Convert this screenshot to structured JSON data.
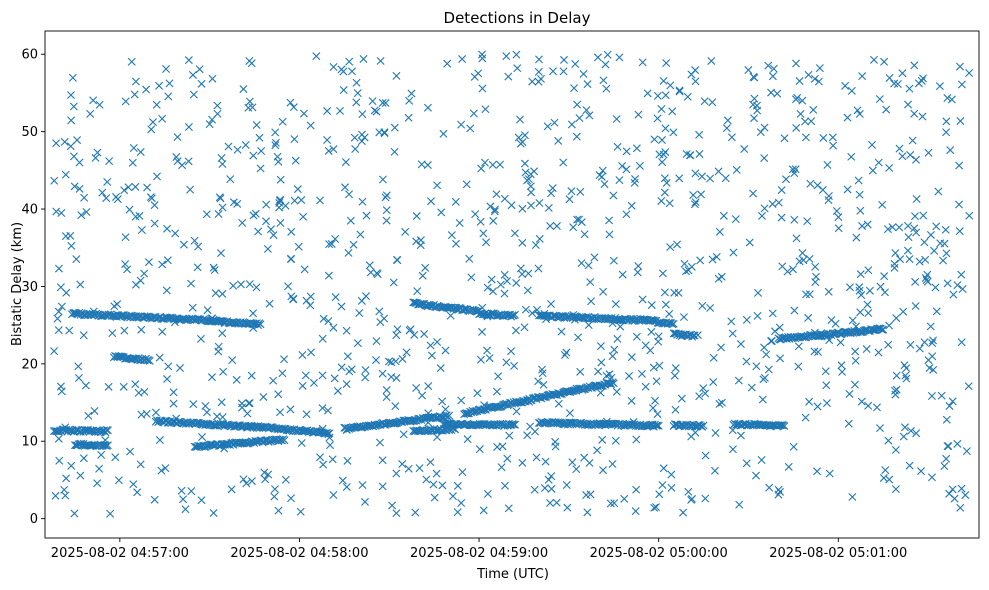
{
  "chart_data": {
    "type": "scatter",
    "title": "Detections in Delay",
    "xlabel": "Time (UTC)",
    "ylabel": "Bistatic Delay (km)",
    "marker": "x",
    "color": "#1f77b4",
    "grid": false,
    "legend": "none",
    "x_axis": {
      "kind": "time",
      "range": [
        "2025-08-02 04:56:35",
        "2025-08-02 05:01:47"
      ],
      "ticks": [
        {
          "t": "2025-08-02 04:57:00",
          "label": "2025-08-02 04:57:00"
        },
        {
          "t": "2025-08-02 04:58:00",
          "label": "2025-08-02 04:58:00"
        },
        {
          "t": "2025-08-02 04:59:00",
          "label": "2025-08-02 04:59:00"
        },
        {
          "t": "2025-08-02 05:00:00",
          "label": "2025-08-02 05:00:00"
        },
        {
          "t": "2025-08-02 05:01:00",
          "label": "2025-08-02 05:01:00"
        }
      ]
    },
    "y_axis": {
      "range": [
        -2.5,
        63
      ],
      "ticks": [
        0,
        10,
        20,
        30,
        40,
        50,
        60
      ],
      "tick_labels": [
        "0",
        "10",
        "20",
        "30",
        "40",
        "50",
        "60"
      ]
    },
    "tracks": [
      {
        "start": "2025-08-02 04:56:44",
        "end": "2025-08-02 04:57:20",
        "y_start": 26.5,
        "y_end": 25.8
      },
      {
        "start": "2025-08-02 04:57:20",
        "end": "2025-08-02 04:57:35",
        "y_start": 25.8,
        "y_end": 25.5
      },
      {
        "start": "2025-08-02 04:57:35",
        "end": "2025-08-02 04:57:47",
        "y_start": 25.4,
        "y_end": 25.1
      },
      {
        "start": "2025-08-02 04:56:58",
        "end": "2025-08-02 04:57:10",
        "y_start": 20.9,
        "y_end": 20.5
      },
      {
        "start": "2025-08-02 04:56:38",
        "end": "2025-08-02 04:56:56",
        "y_start": 11.4,
        "y_end": 11.3
      },
      {
        "start": "2025-08-02 04:56:45",
        "end": "2025-08-02 04:56:56",
        "y_start": 9.6,
        "y_end": 9.4
      },
      {
        "start": "2025-08-02 04:57:12",
        "end": "2025-08-02 04:57:55",
        "y_start": 12.6,
        "y_end": 11.6
      },
      {
        "start": "2025-08-02 04:57:25",
        "end": "2025-08-02 04:57:55",
        "y_start": 9.3,
        "y_end": 10.2
      },
      {
        "start": "2025-08-02 04:57:55",
        "end": "2025-08-02 04:58:10",
        "y_start": 11.5,
        "y_end": 11.1
      },
      {
        "start": "2025-08-02 04:58:15",
        "end": "2025-08-02 04:58:50",
        "y_start": 11.6,
        "y_end": 13.3
      },
      {
        "start": "2025-08-02 04:58:38",
        "end": "2025-08-02 04:58:52",
        "y_start": 11.3,
        "y_end": 11.6
      },
      {
        "start": "2025-08-02 04:58:48",
        "end": "2025-08-02 04:59:12",
        "y_start": 12.2,
        "y_end": 12.1
      },
      {
        "start": "2025-08-02 04:58:38",
        "end": "2025-08-02 04:59:00",
        "y_start": 27.8,
        "y_end": 26.8
      },
      {
        "start": "2025-08-02 04:59:00",
        "end": "2025-08-02 04:59:12",
        "y_start": 26.5,
        "y_end": 26.2
      },
      {
        "start": "2025-08-02 04:58:55",
        "end": "2025-08-02 04:59:45",
        "y_start": 13.6,
        "y_end": 17.6
      },
      {
        "start": "2025-08-02 04:59:20",
        "end": "2025-08-02 04:59:58",
        "y_start": 26.2,
        "y_end": 25.6
      },
      {
        "start": "2025-08-02 04:59:58",
        "end": "2025-08-02 05:00:05",
        "y_start": 25.5,
        "y_end": 25.2
      },
      {
        "start": "2025-08-02 04:59:20",
        "end": "2025-08-02 05:00:00",
        "y_start": 12.4,
        "y_end": 12.0
      },
      {
        "start": "2025-08-02 05:00:05",
        "end": "2025-08-02 05:00:15",
        "y_start": 12.1,
        "y_end": 12.0
      },
      {
        "start": "2025-08-02 05:00:05",
        "end": "2025-08-02 05:00:12",
        "y_start": 23.8,
        "y_end": 23.6
      },
      {
        "start": "2025-08-02 05:00:25",
        "end": "2025-08-02 05:00:42",
        "y_start": 12.2,
        "y_end": 12.0
      },
      {
        "start": "2025-08-02 05:00:40",
        "end": "2025-08-02 05:01:15",
        "y_start": 23.2,
        "y_end": 24.5
      }
    ],
    "background_noise": {
      "y_range": [
        0.5,
        60
      ],
      "count": 1160
    }
  }
}
